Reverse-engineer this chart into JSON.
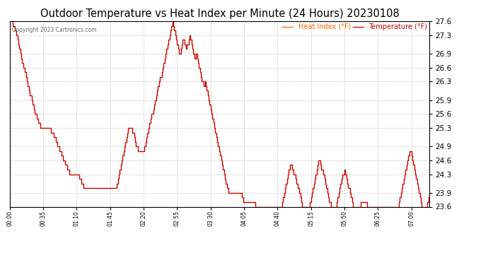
{
  "title": "Outdoor Temperature vs Heat Index per Minute (24 Hours) 20230108",
  "copyright_text": "Copyright 2023 Cartronics.com",
  "legend_heat_index": "Heat Index (°F)",
  "legend_temperature": "Temperature (°F)",
  "heat_index_color": "#ff6600",
  "temperature_color": "#cc0000",
  "ylim": [
    23.6,
    27.6
  ],
  "yticks": [
    23.6,
    23.9,
    24.3,
    24.6,
    24.9,
    25.3,
    25.6,
    25.9,
    26.3,
    26.6,
    26.9,
    27.3,
    27.6
  ],
  "background_color": "#ffffff",
  "grid_color": "#bbbbbb",
  "title_fontsize": 10.5,
  "temperature_data": [
    27.6,
    27.6,
    27.6,
    27.5,
    27.5,
    27.4,
    27.4,
    27.3,
    27.2,
    27.1,
    27.0,
    26.9,
    26.8,
    26.7,
    26.6,
    26.6,
    26.5,
    26.4,
    26.3,
    26.2,
    26.1,
    26.0,
    26.0,
    25.9,
    25.8,
    25.7,
    25.6,
    25.6,
    25.5,
    25.5,
    25.4,
    25.4,
    25.3,
    25.3,
    25.3,
    25.3,
    25.3,
    25.3,
    25.3,
    25.3,
    25.3,
    25.3,
    25.3,
    25.2,
    25.2,
    25.2,
    25.1,
    25.1,
    25.0,
    25.0,
    24.9,
    24.9,
    24.8,
    24.8,
    24.7,
    24.7,
    24.6,
    24.6,
    24.5,
    24.5,
    24.4,
    24.4,
    24.3,
    24.3,
    24.3,
    24.3,
    24.3,
    24.3,
    24.3,
    24.3,
    24.3,
    24.3,
    24.3,
    24.2,
    24.2,
    24.1,
    24.1,
    24.0,
    24.0,
    24.0,
    24.0,
    24.0,
    24.0,
    24.0,
    24.0,
    24.0,
    24.0,
    24.0,
    24.0,
    24.0,
    24.0,
    24.0,
    24.0,
    24.0,
    24.0,
    24.0,
    24.0,
    24.0,
    24.0,
    24.0,
    24.0,
    24.0,
    24.0,
    24.0,
    24.0,
    24.0,
    24.0,
    24.0,
    24.0,
    24.0,
    24.0,
    24.0,
    24.1,
    24.2,
    24.3,
    24.4,
    24.5,
    24.6,
    24.7,
    24.8,
    24.9,
    25.0,
    25.1,
    25.2,
    25.3,
    25.3,
    25.3,
    25.3,
    25.2,
    25.2,
    25.1,
    25.0,
    24.9,
    24.9,
    24.8,
    24.8,
    24.8,
    24.8,
    24.8,
    24.8,
    24.8,
    24.9,
    25.0,
    25.1,
    25.2,
    25.3,
    25.4,
    25.5,
    25.6,
    25.6,
    25.7,
    25.8,
    25.9,
    26.0,
    26.1,
    26.2,
    26.3,
    26.4,
    26.4,
    26.5,
    26.6,
    26.7,
    26.8,
    26.9,
    27.0,
    27.1,
    27.2,
    27.3,
    27.4,
    27.5,
    27.6,
    27.5,
    27.4,
    27.3,
    27.2,
    27.1,
    27.0,
    26.9,
    26.9,
    27.0,
    27.1,
    27.2,
    27.2,
    27.1,
    27.0,
    27.1,
    27.1,
    27.2,
    27.3,
    27.2,
    27.1,
    27.0,
    26.9,
    26.8,
    26.8,
    26.9,
    26.8,
    26.7,
    26.6,
    26.5,
    26.4,
    26.3,
    26.3,
    26.2,
    26.3,
    26.2,
    26.1,
    26.0,
    25.9,
    25.8,
    25.7,
    25.6,
    25.5,
    25.4,
    25.3,
    25.2,
    25.1,
    25.0,
    24.9,
    24.8,
    24.7,
    24.6,
    24.5,
    24.4,
    24.3,
    24.2,
    24.1,
    24.0,
    24.0,
    23.9,
    23.9,
    23.9,
    23.9,
    23.9,
    23.9,
    23.9,
    23.9,
    23.9,
    23.9,
    23.9,
    23.9,
    23.9,
    23.9,
    23.8,
    23.7,
    23.7,
    23.7,
    23.7,
    23.7,
    23.7,
    23.7,
    23.7,
    23.7,
    23.7,
    23.7,
    23.7,
    23.7,
    23.6,
    23.6,
    23.6,
    23.6,
    23.6,
    23.6,
    23.6,
    23.6,
    23.6,
    23.6,
    23.6,
    23.6,
    23.6,
    23.6,
    23.6,
    23.6,
    23.6,
    23.6,
    23.6,
    23.6,
    23.6,
    23.6,
    23.6,
    23.6,
    23.6,
    23.6,
    23.6,
    23.6,
    23.7,
    23.8,
    23.9,
    24.0,
    24.1,
    24.2,
    24.3,
    24.4,
    24.5,
    24.5,
    24.4,
    24.4,
    24.3,
    24.3,
    24.2,
    24.1,
    24.0,
    24.0,
    23.9,
    23.8,
    23.7,
    23.6,
    23.6,
    23.6,
    23.6,
    23.6,
    23.6,
    23.6,
    23.6,
    23.7,
    23.8,
    23.9,
    24.0,
    24.1,
    24.2,
    24.3,
    24.4,
    24.5,
    24.6,
    24.6,
    24.5,
    24.4,
    24.4,
    24.3,
    24.2,
    24.1,
    24.0,
    23.9,
    23.8,
    23.7,
    23.7,
    23.6,
    23.6,
    23.6,
    23.6,
    23.6,
    23.6,
    23.7,
    23.8,
    23.9,
    24.0,
    24.1,
    24.2,
    24.3,
    24.3,
    24.4,
    24.3,
    24.2,
    24.1,
    24.0,
    24.0,
    23.9,
    23.8,
    23.7,
    23.6,
    23.6,
    23.6,
    23.6,
    23.6,
    23.6,
    23.6,
    23.6,
    23.7,
    23.7,
    23.7,
    23.7,
    23.7,
    23.7,
    23.7,
    23.6,
    23.6,
    23.6,
    23.6,
    23.6,
    23.6,
    23.6,
    23.6,
    23.6,
    23.6,
    23.6,
    23.6,
    23.6,
    23.6,
    23.6,
    23.6,
    23.6,
    23.6,
    23.6,
    23.6,
    23.6,
    23.6,
    23.6,
    23.6,
    23.6,
    23.6,
    23.6,
    23.6,
    23.6,
    23.6,
    23.6,
    23.6,
    23.6,
    23.7,
    23.8,
    23.9,
    24.0,
    24.1,
    24.2,
    24.3,
    24.4,
    24.5,
    24.6,
    24.7,
    24.8,
    24.8,
    24.7,
    24.6,
    24.5,
    24.4,
    24.3,
    24.2,
    24.1,
    24.0,
    23.9,
    23.8,
    23.7,
    23.6,
    23.6,
    23.6,
    23.6,
    23.6,
    23.6,
    23.7,
    23.8,
    23.9
  ]
}
